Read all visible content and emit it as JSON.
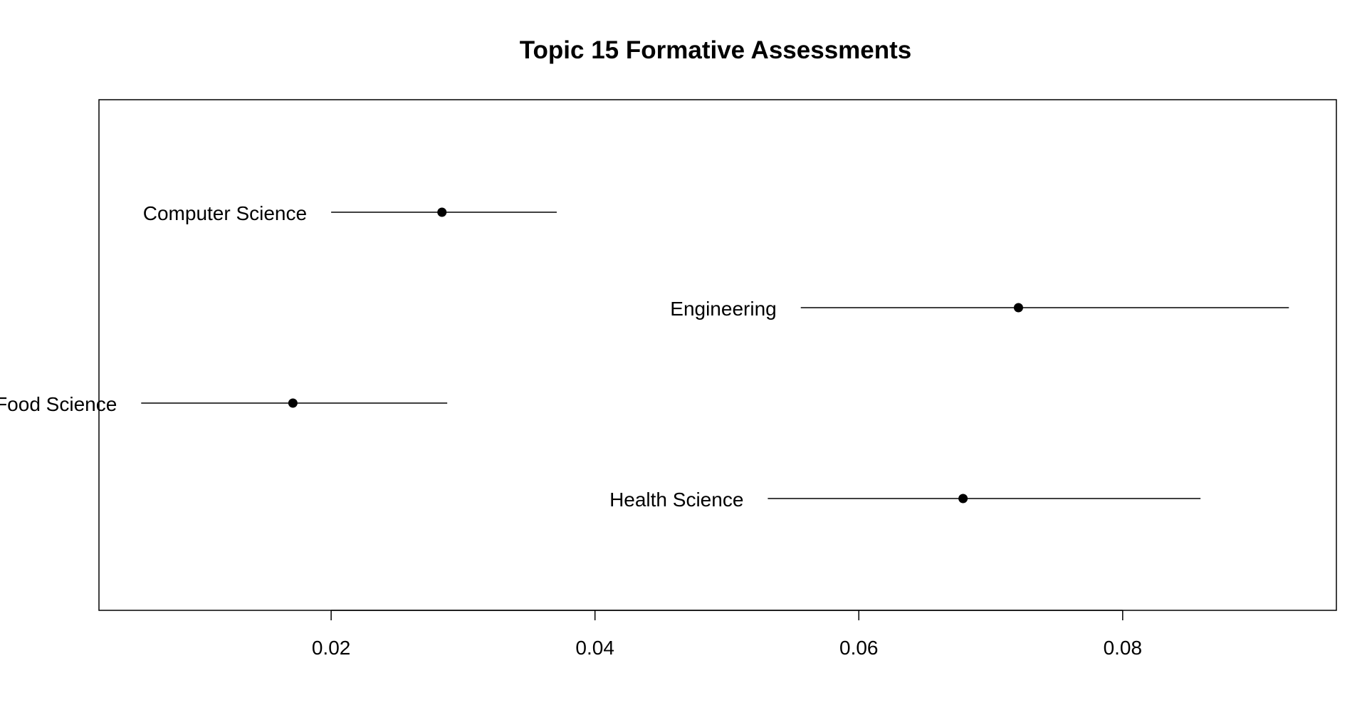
{
  "chart_data": {
    "type": "scatter",
    "subtype": "point-estimate-with-intervals",
    "title": "Topic 15 Formative Assessments",
    "xlabel": "",
    "ylabel": "",
    "xlim": [
      0.0024,
      0.0962
    ],
    "x_ticks": [
      0.02,
      0.04,
      0.06,
      0.08
    ],
    "x_tick_labels": [
      "0.02",
      "0.04",
      "0.06",
      "0.08"
    ],
    "grid": false,
    "legend": "none",
    "point_color": "#000000",
    "line_color": "#000000",
    "points": [
      {
        "label": "Computer Science",
        "estimate": 0.0284,
        "lower": 0.02,
        "upper": 0.0371
      },
      {
        "label": "Engineering",
        "estimate": 0.0721,
        "lower": 0.0556,
        "upper": 0.0926
      },
      {
        "label": "Food Science",
        "estimate": 0.0171,
        "lower": 0.0056,
        "upper": 0.0288
      },
      {
        "label": "Health Science",
        "estimate": 0.0679,
        "lower": 0.0531,
        "upper": 0.0859
      }
    ]
  }
}
